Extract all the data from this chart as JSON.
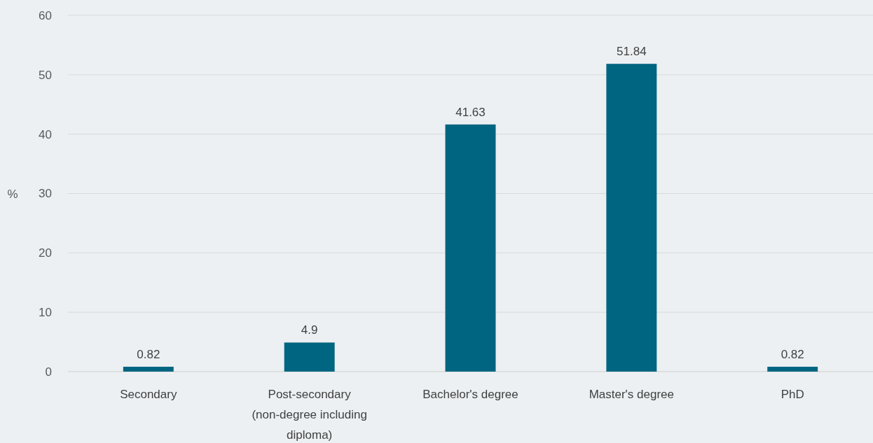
{
  "chart_data": {
    "type": "bar",
    "ylabel": "%",
    "categories": [
      "Secondary",
      "Post-secondary (non-degree including diploma)",
      "Bachelor's degree",
      "Master's degree",
      "PhD"
    ],
    "values": [
      0.82,
      4.9,
      41.63,
      51.84,
      0.82
    ],
    "color": "#006580",
    "ylim": [
      0,
      60
    ],
    "yticks": [
      0,
      10,
      20,
      30,
      40,
      50,
      60
    ],
    "grid": "y",
    "data_labels": true
  }
}
